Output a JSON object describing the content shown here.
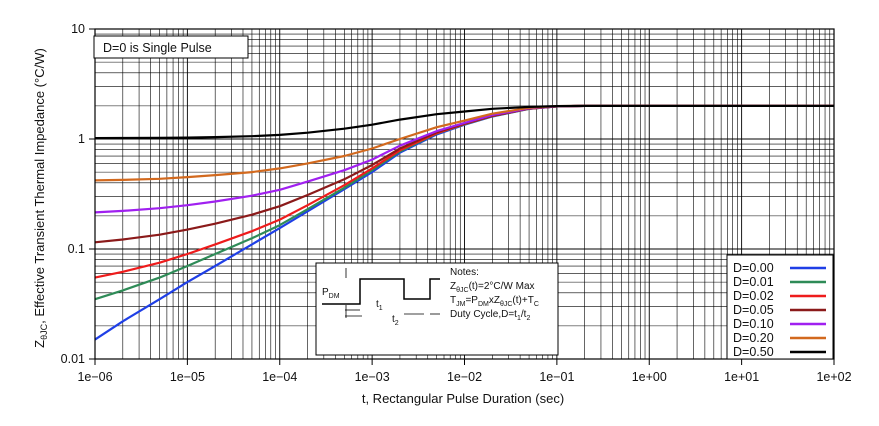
{
  "chart_data": {
    "type": "line",
    "title": "",
    "xlabel": "t, Rectangular Pulse Duration (sec)",
    "ylabel_main": "Z",
    "ylabel_sub": "θJC",
    "ylabel_rest": ", Effective Transient Thermal Impedance (°C/W)",
    "x_scale": "log",
    "y_scale": "log",
    "xlim": [
      1e-06,
      100
    ],
    "ylim": [
      0.01,
      10
    ],
    "x_ticks": [
      {
        "value": 1e-06,
        "label": "1e−06"
      },
      {
        "value": 1e-05,
        "label": "1e−05"
      },
      {
        "value": 0.0001,
        "label": "1e−04"
      },
      {
        "value": 0.001,
        "label": "1e−03"
      },
      {
        "value": 0.01,
        "label": "1e−02"
      },
      {
        "value": 0.1,
        "label": "1e−01"
      },
      {
        "value": 1,
        "label": "1e+00"
      },
      {
        "value": 10,
        "label": "1e+01"
      },
      {
        "value": 100,
        "label": "1e+02"
      }
    ],
    "y_ticks": [
      {
        "value": 0.01,
        "label": "0.01"
      },
      {
        "value": 0.1,
        "label": "0.1"
      },
      {
        "value": 1,
        "label": "1"
      },
      {
        "value": 10,
        "label": "10"
      }
    ],
    "grid": true,
    "legend_position": "bottom-right",
    "series": [
      {
        "name": "D=0.00",
        "color": "#1f3fe6",
        "x": [
          1e-06,
          2e-06,
          5e-06,
          1e-05,
          2e-05,
          5e-05,
          0.0001,
          0.0002,
          0.0005,
          0.001,
          0.002,
          0.005,
          0.01,
          0.02,
          0.05,
          0.1,
          0.2,
          1,
          10,
          100
        ],
        "y": [
          0.015,
          0.022,
          0.035,
          0.05,
          0.07,
          0.11,
          0.155,
          0.22,
          0.35,
          0.5,
          0.75,
          1.1,
          1.35,
          1.6,
          1.88,
          1.98,
          2.0,
          2.0,
          2.0,
          2.0
        ]
      },
      {
        "name": "D=0.01",
        "color": "#2e8b57",
        "x": [
          1e-06,
          2e-06,
          5e-06,
          1e-05,
          2e-05,
          5e-05,
          0.0001,
          0.0002,
          0.0005,
          0.001,
          0.002,
          0.005,
          0.01,
          0.02,
          0.05,
          0.1,
          0.2,
          1,
          10,
          100
        ],
        "y": [
          0.035,
          0.042,
          0.055,
          0.07,
          0.09,
          0.125,
          0.165,
          0.23,
          0.36,
          0.52,
          0.77,
          1.12,
          1.36,
          1.61,
          1.88,
          1.98,
          2.0,
          2.0,
          2.0,
          2.0
        ]
      },
      {
        "name": "D=0.02",
        "color": "#ee1c1c",
        "x": [
          1e-06,
          2e-06,
          5e-06,
          1e-05,
          2e-05,
          5e-05,
          0.0001,
          0.0002,
          0.0005,
          0.001,
          0.002,
          0.005,
          0.01,
          0.02,
          0.05,
          0.1,
          0.2,
          1,
          10,
          100
        ],
        "y": [
          0.055,
          0.062,
          0.075,
          0.09,
          0.11,
          0.145,
          0.185,
          0.25,
          0.38,
          0.54,
          0.79,
          1.13,
          1.37,
          1.62,
          1.89,
          1.98,
          2.0,
          2.0,
          2.0,
          2.0
        ]
      },
      {
        "name": "D=0.05",
        "color": "#8b1a1a",
        "x": [
          1e-06,
          2e-06,
          5e-06,
          1e-05,
          2e-05,
          5e-05,
          0.0001,
          0.0002,
          0.0005,
          0.001,
          0.002,
          0.005,
          0.01,
          0.02,
          0.05,
          0.1,
          0.2,
          1,
          10,
          100
        ],
        "y": [
          0.115,
          0.122,
          0.135,
          0.15,
          0.17,
          0.205,
          0.245,
          0.31,
          0.43,
          0.58,
          0.82,
          1.15,
          1.38,
          1.63,
          1.89,
          1.98,
          2.0,
          2.0,
          2.0,
          2.0
        ]
      },
      {
        "name": "D=0.10",
        "color": "#a020f0",
        "x": [
          1e-06,
          2e-06,
          5e-06,
          1e-05,
          2e-05,
          5e-05,
          0.0001,
          0.0002,
          0.0005,
          0.001,
          0.002,
          0.005,
          0.01,
          0.02,
          0.05,
          0.1,
          0.2,
          1,
          10,
          100
        ],
        "y": [
          0.215,
          0.222,
          0.235,
          0.25,
          0.27,
          0.305,
          0.345,
          0.41,
          0.52,
          0.65,
          0.87,
          1.18,
          1.4,
          1.65,
          1.9,
          1.98,
          2.0,
          2.0,
          2.0,
          2.0
        ]
      },
      {
        "name": "D=0.20",
        "color": "#d2691e",
        "x": [
          1e-06,
          2e-06,
          5e-06,
          1e-05,
          2e-05,
          5e-05,
          0.0001,
          0.0002,
          0.0005,
          0.001,
          0.002,
          0.005,
          0.01,
          0.02,
          0.05,
          0.1,
          0.2,
          1,
          10,
          100
        ],
        "y": [
          0.42,
          0.425,
          0.435,
          0.45,
          0.47,
          0.5,
          0.54,
          0.6,
          0.7,
          0.82,
          1.0,
          1.28,
          1.47,
          1.7,
          1.92,
          1.99,
          2.0,
          2.0,
          2.0,
          2.0
        ]
      },
      {
        "name": "D=0.50",
        "color": "#000000",
        "x": [
          1e-06,
          2e-06,
          5e-06,
          1e-05,
          2e-05,
          5e-05,
          0.0001,
          0.0002,
          0.0005,
          0.001,
          0.002,
          0.005,
          0.01,
          0.02,
          0.05,
          0.1,
          0.2,
          1,
          10,
          100
        ],
        "y": [
          1.02,
          1.022,
          1.025,
          1.03,
          1.04,
          1.06,
          1.09,
          1.14,
          1.24,
          1.35,
          1.5,
          1.68,
          1.78,
          1.88,
          1.96,
          1.99,
          2.0,
          2.0,
          2.0,
          2.0
        ]
      }
    ],
    "annotations": {
      "single_pulse": "D=0 is Single Pulse",
      "notes_title": "Notes:",
      "note_1_pre": "Z",
      "note_1_sub": "θJC",
      "note_1_post": "(t)=2°C/W Max",
      "note_2_pre": "T",
      "note_2_sub1": "JM",
      "note_2_mid1": "=P",
      "note_2_sub2": "DM",
      "note_2_mid2": "xZ",
      "note_2_sub3": "θJC",
      "note_2_mid3": "(t)+T",
      "note_2_sub4": "C",
      "note_3_pre": "Duty Cycle,D=t",
      "note_3_sub1": "1",
      "note_3_mid": "/t",
      "note_3_sub2": "2",
      "pdm_main": "P",
      "pdm_sub": "DM",
      "t1_main": "t",
      "t1_sub": "1",
      "t2_main": "t",
      "t2_sub": "2"
    }
  }
}
